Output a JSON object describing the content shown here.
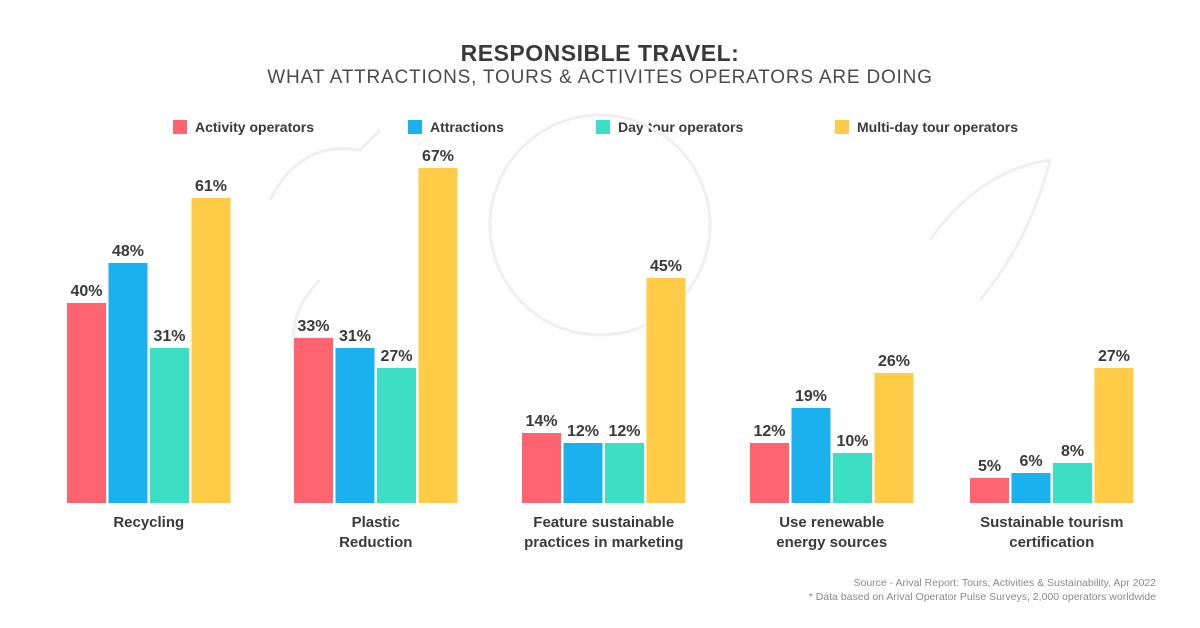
{
  "chart_data": {
    "type": "bar",
    "title": "RESPONSIBLE TRAVEL:",
    "subtitle": "WHAT ATTRACTIONS, TOURS & ACTIVITES OPERATORS ARE DOING",
    "categories": [
      [
        "Recycling"
      ],
      [
        "Plastic",
        "Reduction"
      ],
      [
        "Feature sustainable",
        "practices in marketing"
      ],
      [
        "Use renewable",
        "energy sources"
      ],
      [
        "Sustainable tourism",
        "certification"
      ]
    ],
    "series": [
      {
        "name": "Activity operators",
        "color": "#fd646f",
        "values": [
          40,
          33,
          14,
          12,
          5
        ]
      },
      {
        "name": "Attractions",
        "color": "#1bb0ee",
        "values": [
          48,
          31,
          12,
          19,
          6
        ]
      },
      {
        "name": "Day tour operators",
        "color": "#3ddfc4",
        "values": [
          31,
          27,
          12,
          10,
          8
        ]
      },
      {
        "name": "Multi-day tour operators",
        "color": "#fecc47",
        "values": [
          61,
          67,
          45,
          26,
          27
        ]
      }
    ],
    "value_suffix": "%",
    "ylim": [
      0,
      67
    ],
    "grid": false,
    "legend_position": "top"
  },
  "source": {
    "line1": "Source - Arival Report: Tours, Activities & Sustainability, Apr 2022",
    "line2": "* Data based on Arival Operator Pulse Surveys, 2,000 operators worldwide"
  }
}
